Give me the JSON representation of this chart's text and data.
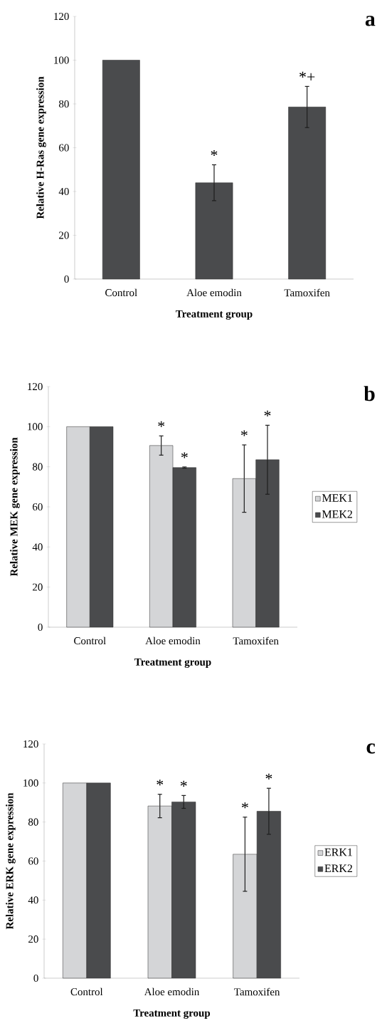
{
  "chart_data": [
    {
      "type": "bar",
      "xlabel": "Treatment group",
      "ylabel": "Relative H-Ras gene expression",
      "categories": [
        "Control",
        "Aloe emodin",
        "Tamoxifen"
      ],
      "series": [
        {
          "color": "#4a4b4d",
          "values": [
            100,
            44,
            78.6
          ],
          "errors": [
            null,
            8.2,
            9.4
          ]
        }
      ],
      "ylim": [
        0,
        120
      ],
      "yticks": [
        0,
        20,
        40,
        60,
        80,
        100,
        120
      ],
      "grid": false,
      "legend": false,
      "annotations": [
        "a",
        "*",
        "*+"
      ]
    },
    {
      "type": "bar",
      "xlabel": "Treatment group",
      "ylabel": "Relative MEK gene expression",
      "categories": [
        "Control",
        "Aloe emodin",
        "Tamoxifen"
      ],
      "series": [
        {
          "name": "MEK1",
          "color": "#d4d5d7",
          "values": [
            100,
            90.6,
            74.1
          ],
          "errors": [
            null,
            4.8,
            16.8
          ]
        },
        {
          "name": "MEK2",
          "color": "#4a4b4d",
          "values": [
            100,
            79.6,
            83.5
          ],
          "errors": [
            null,
            0.3,
            17.2
          ]
        }
      ],
      "ylim": [
        0,
        120
      ],
      "yticks": [
        0,
        20,
        40,
        60,
        80,
        100,
        120
      ],
      "grid": false,
      "legend": "right",
      "annotations": [
        "b",
        "*",
        "*",
        "*",
        "*"
      ]
    },
    {
      "type": "bar",
      "xlabel": "Treatment group",
      "ylabel": "Relative ERK gene expression",
      "categories": [
        "Control",
        "Aloe emodin",
        "Tamoxifen"
      ],
      "series": [
        {
          "name": "ERK1",
          "color": "#d4d5d7",
          "values": [
            100,
            88.2,
            63.5
          ],
          "errors": [
            null,
            6,
            19
          ]
        },
        {
          "name": "ERK2",
          "color": "#4a4b4d",
          "values": [
            100,
            90.3,
            85.5
          ],
          "errors": [
            null,
            3.3,
            11.8
          ]
        }
      ],
      "ylim": [
        0,
        120
      ],
      "yticks": [
        0,
        20,
        40,
        60,
        80,
        100,
        120
      ],
      "grid": false,
      "legend": "right",
      "annotations": [
        "c",
        "*",
        "*",
        "*",
        "*"
      ]
    }
  ]
}
